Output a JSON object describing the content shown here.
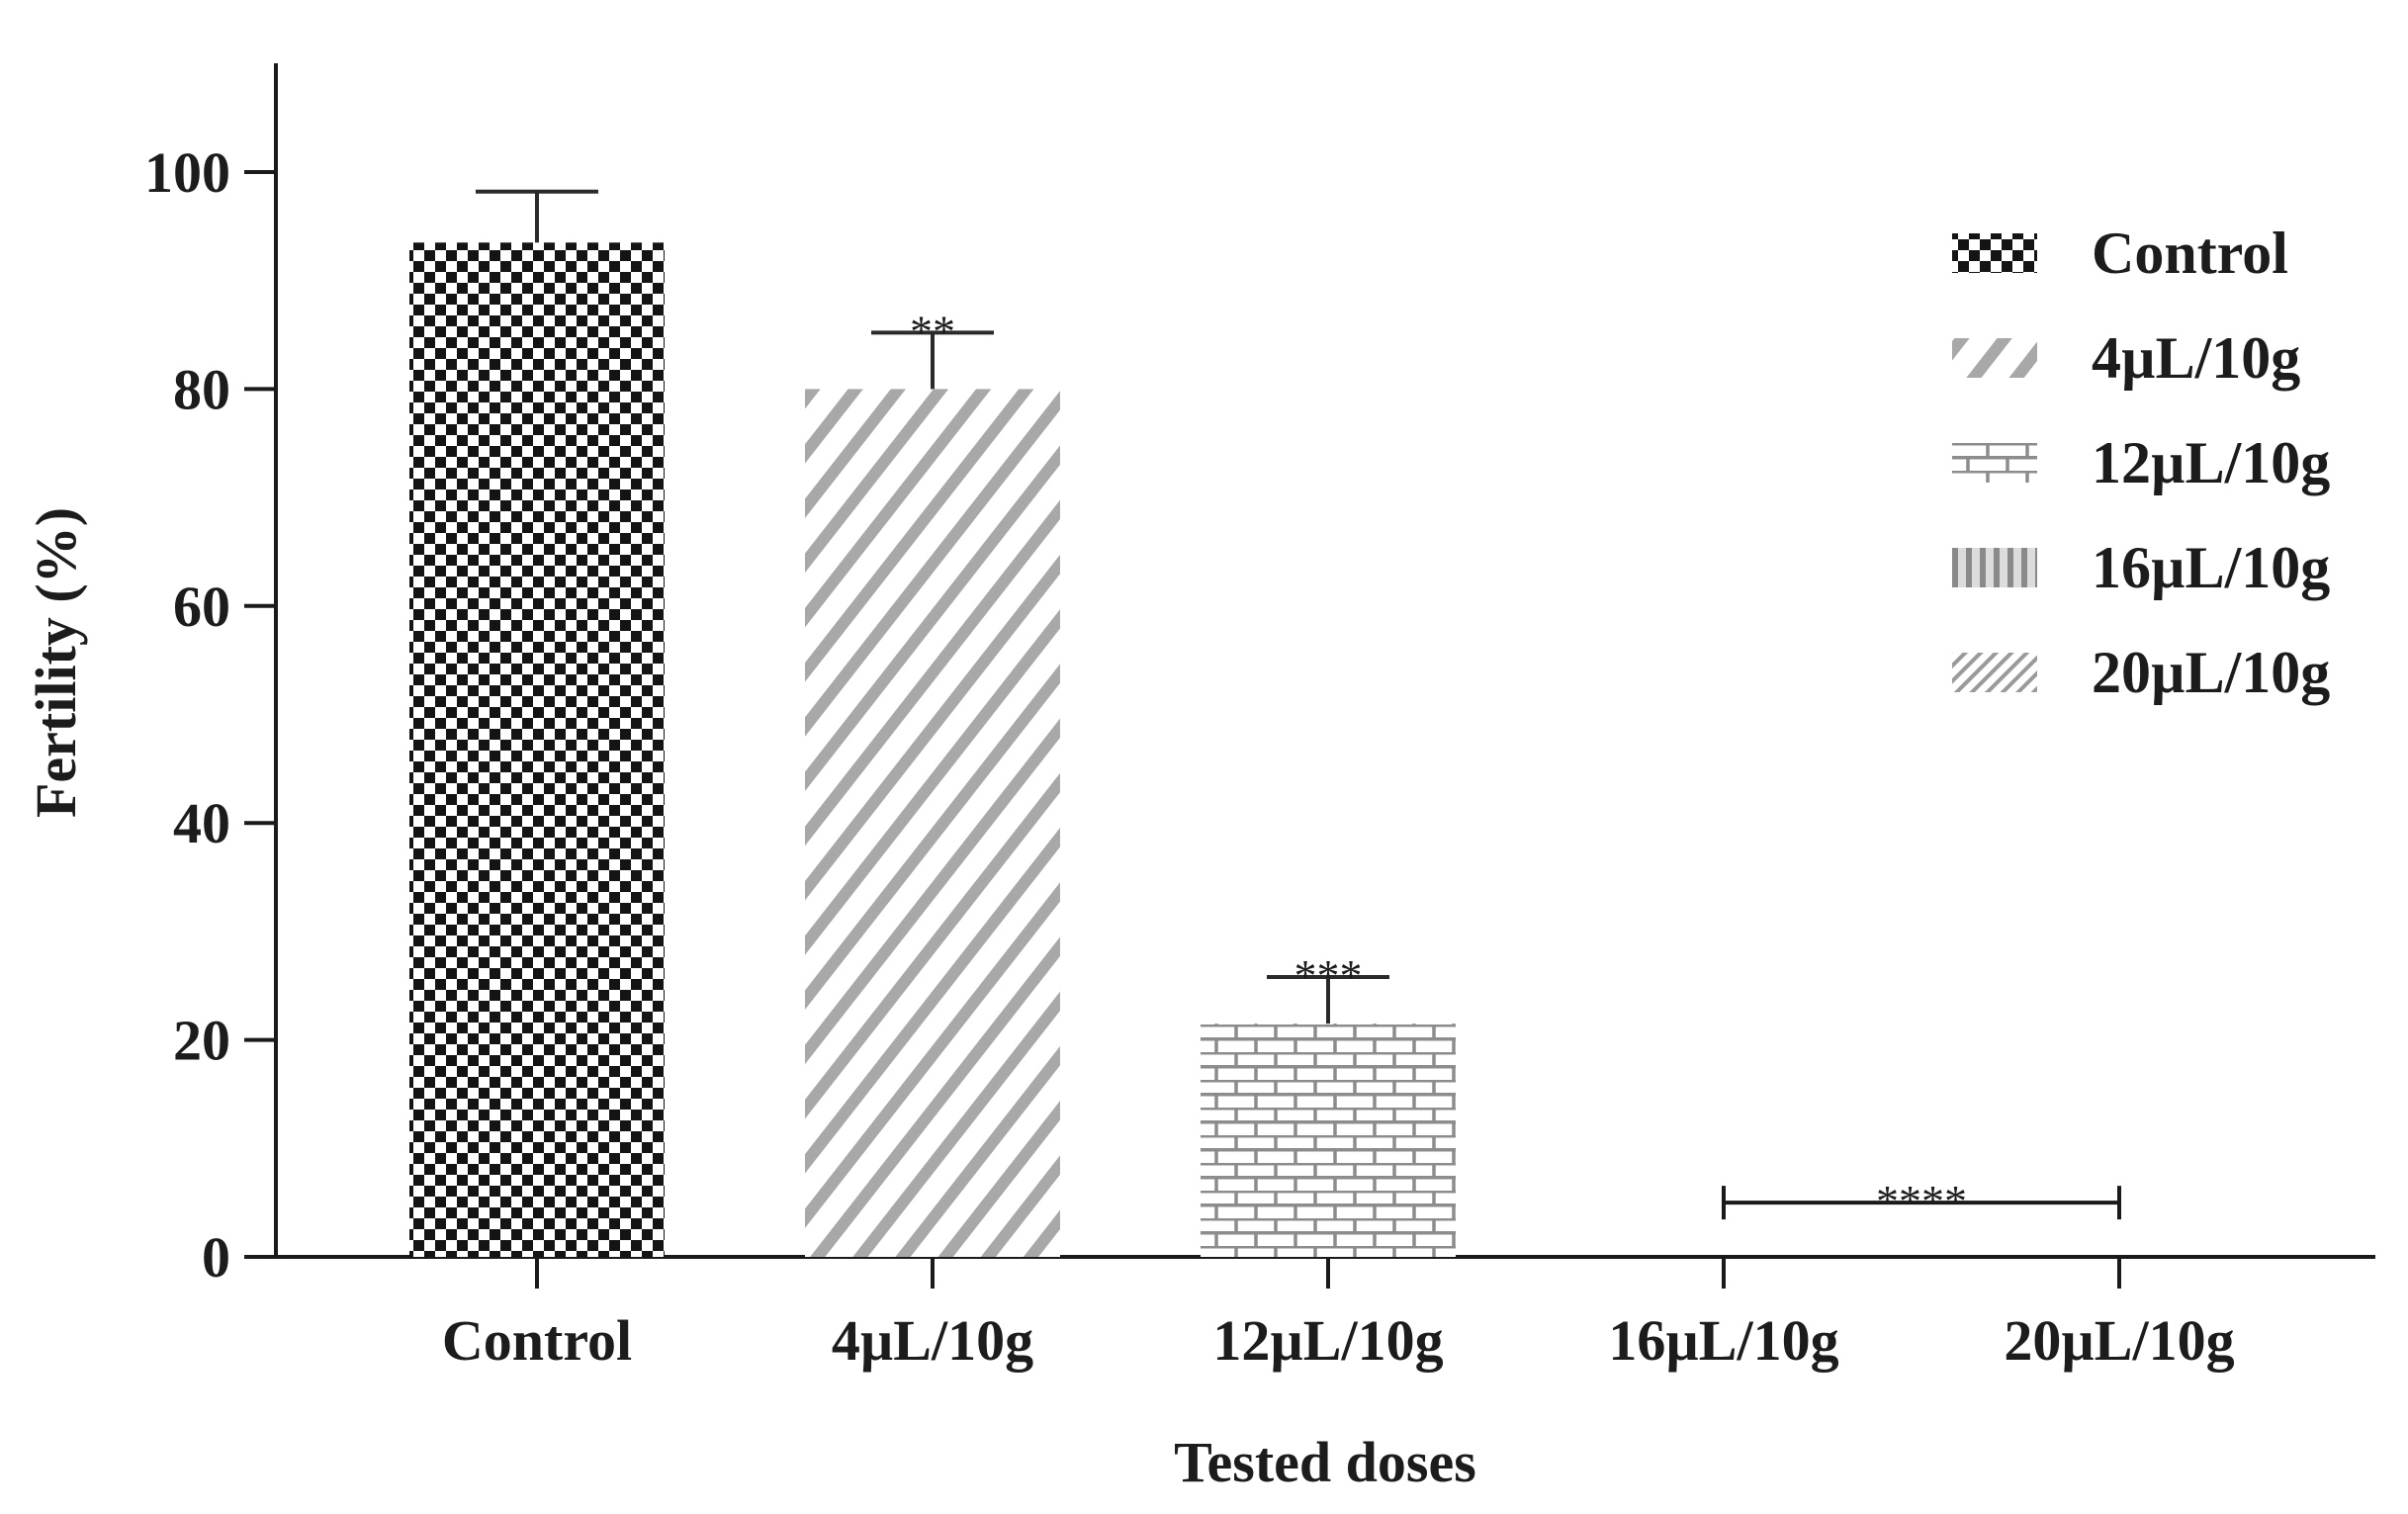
{
  "chart_data": {
    "type": "bar",
    "title": "",
    "xlabel": "Tested doses",
    "ylabel": "Fertility (%)",
    "ylim": [
      0,
      110
    ],
    "yticks": [
      0,
      20,
      40,
      60,
      80,
      100
    ],
    "ytick_labels": [
      "0",
      "20",
      "40",
      "60",
      "80",
      "100"
    ],
    "grid": false,
    "legend_position": "top-right",
    "categories": [
      "Control",
      "4µL/10g",
      "12µL/10g",
      "16µL/10g",
      "20µL/10g"
    ],
    "values": [
      93.5,
      80,
      21.5,
      0,
      0
    ],
    "errors": [
      4.7,
      5.2,
      4.3,
      0,
      0
    ],
    "patterns": [
      "checker",
      "diagonal",
      "brick",
      "vertical",
      "fine-hatch"
    ],
    "significance": [
      {
        "label": "**",
        "bars": [
          1
        ]
      },
      {
        "label": "***",
        "bars": [
          2
        ]
      },
      {
        "label": "****",
        "bars": [
          3,
          4
        ],
        "bracket_value": 5
      }
    ],
    "legend": [
      "Control",
      "4µL/10g",
      "12µL/10g",
      "16µL/10g",
      "20µL/10g"
    ]
  },
  "colors": {
    "axis": "#1a1a1a",
    "checker_dark": "#141414",
    "diagonal": "#a8a8a8",
    "brick": "#8c8c8c",
    "vertical": "#9a9a9a",
    "hatch": "#9a9a9a",
    "text": "#1c1c1c"
  }
}
